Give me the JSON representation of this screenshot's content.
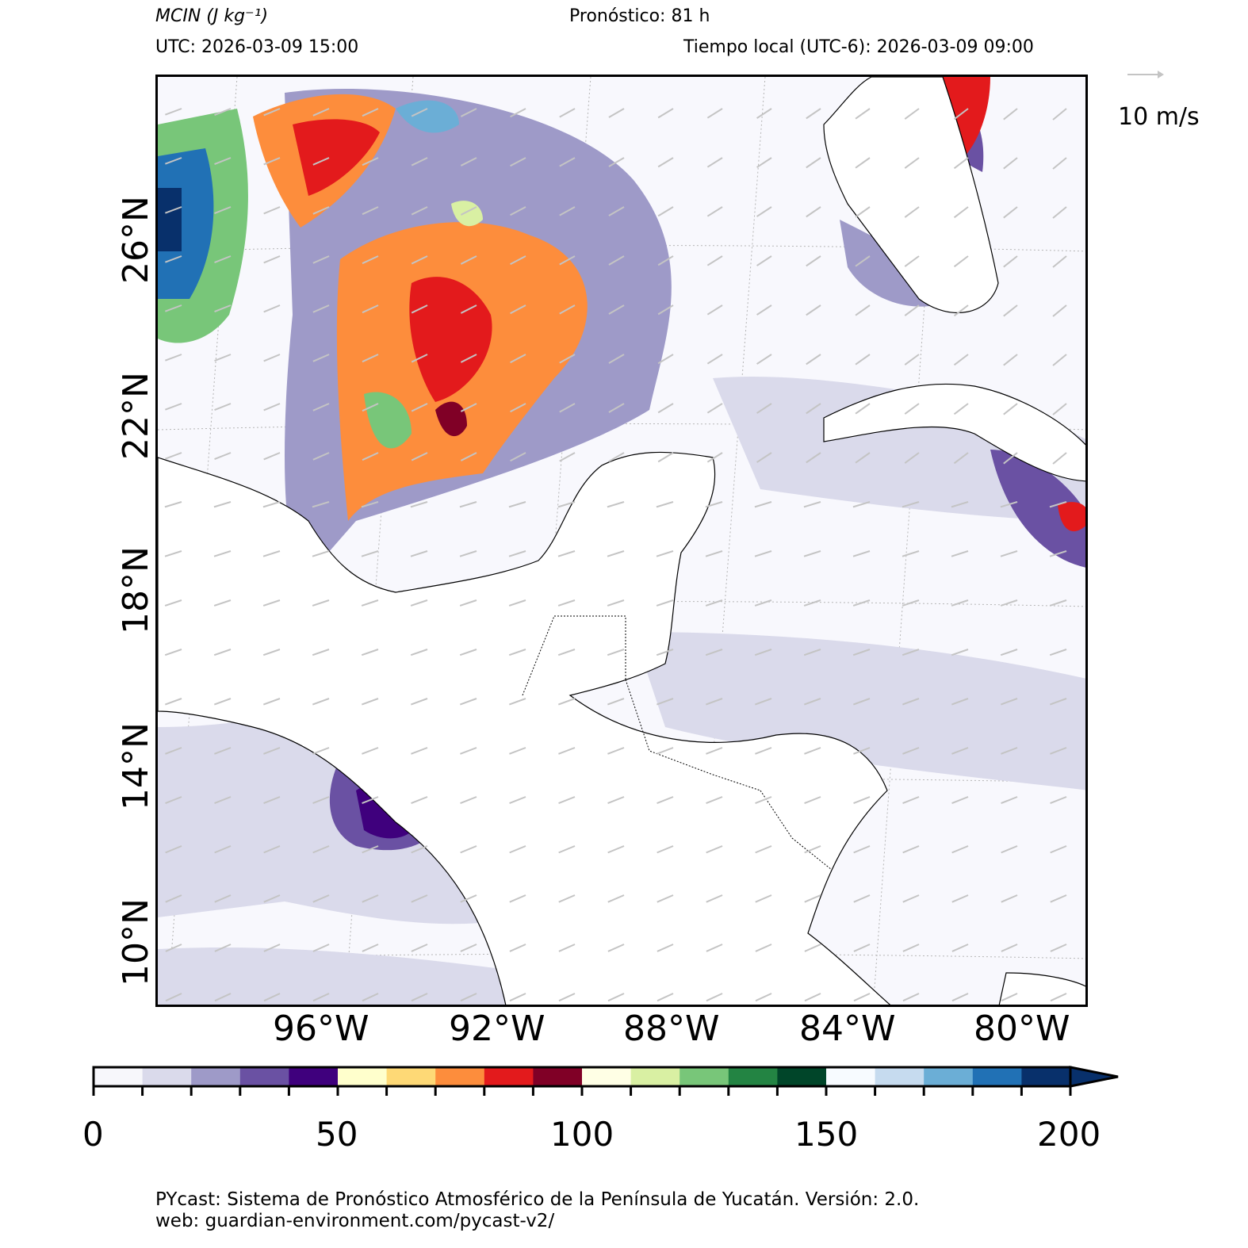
{
  "header": {
    "variable_label": "MCIN (J kg⁻¹)",
    "forecast": "Pronóstico: 81 h",
    "utc": "UTC:  2026-03-09 15:00",
    "local_time": "Tiempo local (UTC-6): 2026-03-09 09:00"
  },
  "map": {
    "lat_labels": [
      "26°N",
      "22°N",
      "18°N",
      "14°N",
      "10°N"
    ],
    "lon_labels": [
      "96°W",
      "92°W",
      "88°W",
      "84°W",
      "80°W"
    ],
    "wind_key": "10 m/s"
  },
  "colorbar": {
    "tick_labels": [
      "0",
      "50",
      "100",
      "150",
      "200"
    ],
    "range": [
      0,
      200
    ],
    "colors": [
      "#f7f7fb",
      "#dadaeb",
      "#9e9ac8",
      "#6a51a3",
      "#3f007d",
      "#ffffcc",
      "#fed976",
      "#fd8d3c",
      "#e31a1c",
      "#800026",
      "#ffffe5",
      "#d9f0a3",
      "#78c679",
      "#238443",
      "#004529",
      "#f7fbff",
      "#c6dbef",
      "#6baed6",
      "#2171b5",
      "#08306b"
    ],
    "extend": "max"
  },
  "footer": {
    "line1": "PYcast: Sistema de Pronóstico Atmosférico de la Península de Yucatán. Versión: 2.0.",
    "line2": "web: guardian-environment.com/pycast-v2/"
  }
}
